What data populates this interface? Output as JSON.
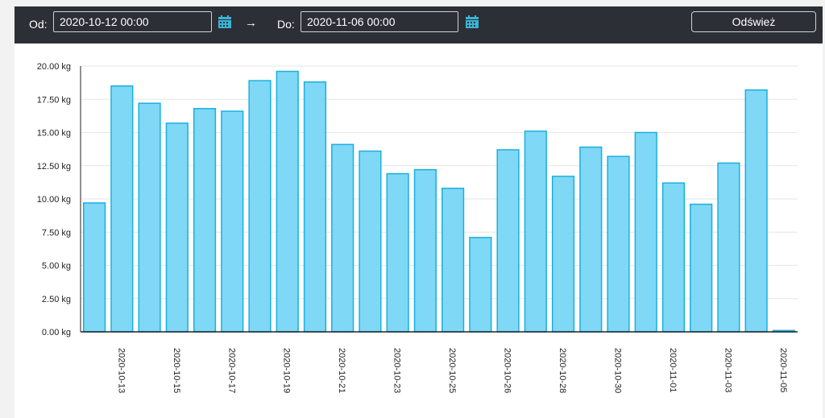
{
  "toolbar": {
    "from_label": "Od:",
    "from_value": "2020-10-12 00:00",
    "arrow": "→",
    "to_label": "Do:",
    "to_value": "2020-11-06 00:00",
    "refresh_label": "Odśwież",
    "calendar_icon": "calendar-icon"
  },
  "colors": {
    "toolbar_bg": "#2c2f36",
    "bar_fill": "#7fd8f6",
    "bar_stroke": "#1ab0e0",
    "calendar_icon": "#3ab5d6"
  },
  "chart_data": {
    "type": "bar",
    "ylim": [
      0,
      20
    ],
    "grid": true,
    "yticks": [
      "0.00 kg",
      "2.50 kg",
      "5.00 kg",
      "7.50 kg",
      "10.00 kg",
      "12.50 kg",
      "15.00 kg",
      "17.50 kg",
      "20.00 kg"
    ],
    "values": [
      9.7,
      18.5,
      17.2,
      15.7,
      16.8,
      16.6,
      18.9,
      19.6,
      18.8,
      14.1,
      13.6,
      11.9,
      12.2,
      10.8,
      7.1,
      13.7,
      15.1,
      11.7,
      13.9,
      13.2,
      15.0,
      11.2,
      9.6,
      12.7,
      18.2,
      0.1
    ],
    "xtick_labels": [
      "2020-10-13",
      "2020-10-15",
      "2020-10-17",
      "2020-10-19",
      "2020-10-21",
      "2020-10-23",
      "2020-10-25",
      "2020-10-26",
      "2020-10-28",
      "2020-10-30",
      "2020-11-01",
      "2020-11-03",
      "2020-11-05"
    ]
  }
}
